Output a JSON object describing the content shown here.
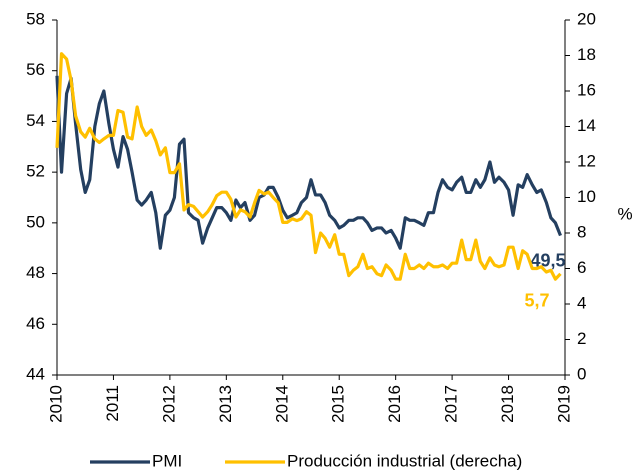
{
  "chart_data": {
    "type": "line",
    "y_axis_right_label": "%",
    "xlim": [
      2010,
      2019
    ],
    "xticks": [
      2010,
      2011,
      2012,
      2013,
      2014,
      2015,
      2016,
      2017,
      2018,
      2019
    ],
    "ylim": [
      44,
      58
    ],
    "yticks": [
      44,
      46,
      48,
      50,
      52,
      54,
      56,
      58
    ],
    "y2lim": [
      0,
      20
    ],
    "y2ticks": [
      0,
      2,
      4,
      6,
      8,
      10,
      12,
      14,
      16,
      18,
      20
    ],
    "grid": false,
    "legend": "bottom",
    "x": [
      2010.0,
      2010.08,
      2010.17,
      2010.25,
      2010.33,
      2010.42,
      2010.5,
      2010.58,
      2010.67,
      2010.75,
      2010.83,
      2010.92,
      2011.0,
      2011.08,
      2011.17,
      2011.25,
      2011.33,
      2011.42,
      2011.5,
      2011.58,
      2011.67,
      2011.75,
      2011.83,
      2011.92,
      2012.0,
      2012.08,
      2012.17,
      2012.25,
      2012.33,
      2012.42,
      2012.5,
      2012.58,
      2012.67,
      2012.75,
      2012.83,
      2012.92,
      2013.0,
      2013.08,
      2013.17,
      2013.25,
      2013.33,
      2013.42,
      2013.5,
      2013.58,
      2013.67,
      2013.75,
      2013.83,
      2013.92,
      2014.0,
      2014.08,
      2014.17,
      2014.25,
      2014.33,
      2014.42,
      2014.5,
      2014.58,
      2014.67,
      2014.75,
      2014.83,
      2014.92,
      2015.0,
      2015.08,
      2015.17,
      2015.25,
      2015.33,
      2015.42,
      2015.5,
      2015.58,
      2015.67,
      2015.75,
      2015.83,
      2015.92,
      2016.0,
      2016.08,
      2016.17,
      2016.25,
      2016.33,
      2016.42,
      2016.5,
      2016.58,
      2016.67,
      2016.75,
      2016.83,
      2016.92,
      2017.0,
      2017.08,
      2017.17,
      2017.25,
      2017.33,
      2017.42,
      2017.5,
      2017.58,
      2017.67,
      2017.75,
      2017.83,
      2017.92,
      2018.0,
      2018.08,
      2018.17,
      2018.25,
      2018.33,
      2018.42,
      2018.5,
      2018.58,
      2018.67,
      2018.75,
      2018.83,
      2018.92
    ],
    "series": [
      {
        "name": "PMI",
        "color": "#243f60",
        "axis": "y",
        "values": [
          55.8,
          52.0,
          55.1,
          55.7,
          53.9,
          52.1,
          51.2,
          51.7,
          53.8,
          54.7,
          55.2,
          53.9,
          52.9,
          52.2,
          53.4,
          52.9,
          52.0,
          50.9,
          50.7,
          50.9,
          51.2,
          50.4,
          49.0,
          50.3,
          50.5,
          51.0,
          53.1,
          53.3,
          50.4,
          50.2,
          50.1,
          49.2,
          49.8,
          50.2,
          50.6,
          50.6,
          50.4,
          50.1,
          50.9,
          50.6,
          50.8,
          50.1,
          50.3,
          51.0,
          51.1,
          51.4,
          51.4,
          51.0,
          50.5,
          50.2,
          50.3,
          50.4,
          50.8,
          51.0,
          51.7,
          51.1,
          51.1,
          50.8,
          50.3,
          50.1,
          49.8,
          49.9,
          50.1,
          50.1,
          50.2,
          50.2,
          50.0,
          49.7,
          49.8,
          49.8,
          49.6,
          49.7,
          49.4,
          49.0,
          50.2,
          50.1,
          50.1,
          50.0,
          49.9,
          50.4,
          50.4,
          51.2,
          51.7,
          51.4,
          51.3,
          51.6,
          51.8,
          51.2,
          51.2,
          51.7,
          51.4,
          51.7,
          52.4,
          51.6,
          51.8,
          51.6,
          51.3,
          50.3,
          51.5,
          51.4,
          51.9,
          51.5,
          51.2,
          51.3,
          50.8,
          50.2,
          50.0,
          49.5
        ],
        "value_labels": [
          null,
          null,
          null,
          null,
          null,
          null,
          null,
          null,
          null,
          null,
          null,
          null,
          null,
          null,
          null,
          null,
          null,
          null,
          null,
          null,
          null,
          null,
          null,
          null,
          null,
          null,
          null,
          null,
          null,
          null,
          null,
          null,
          null,
          null,
          null,
          null,
          null,
          null,
          null,
          null,
          null,
          null,
          null,
          null,
          null,
          null,
          null,
          null,
          null,
          null,
          null,
          null,
          null,
          null,
          null,
          null,
          null,
          null,
          null,
          null,
          null,
          null,
          null,
          null,
          null,
          null,
          null,
          null,
          null,
          null,
          null,
          null,
          null,
          null,
          null,
          null,
          null,
          null,
          null,
          null,
          null,
          null,
          null,
          null,
          null,
          null,
          null,
          null,
          null,
          null,
          null,
          null,
          null,
          null,
          null,
          null,
          null,
          null,
          null,
          null,
          null,
          null,
          null,
          null,
          null,
          null,
          null,
          "49,5"
        ]
      },
      {
        "name": "Producción industrial (derecha)",
        "color": "#ffc000",
        "axis": "y2",
        "values": [
          12.8,
          18.1,
          17.8,
          16.6,
          14.6,
          13.7,
          13.4,
          13.9,
          13.3,
          13.1,
          13.3,
          13.5,
          13.5,
          14.9,
          14.8,
          13.4,
          13.3,
          15.1,
          14.0,
          13.5,
          13.8,
          13.2,
          12.4,
          12.8,
          11.4,
          11.4,
          11.9,
          9.3,
          9.6,
          9.5,
          9.2,
          8.9,
          9.2,
          9.6,
          10.1,
          10.3,
          10.3,
          9.9,
          8.9,
          9.3,
          9.2,
          8.9,
          9.7,
          10.4,
          10.2,
          10.3,
          10.0,
          9.7,
          8.6,
          8.6,
          8.8,
          8.7,
          8.8,
          9.2,
          9.0,
          6.9,
          8.0,
          7.7,
          7.2,
          7.9,
          6.8,
          6.8,
          5.6,
          5.9,
          6.1,
          6.8,
          6.0,
          6.1,
          5.7,
          5.6,
          6.2,
          5.9,
          5.4,
          5.4,
          6.8,
          6.0,
          6.0,
          6.2,
          6.0,
          6.3,
          6.1,
          6.1,
          6.2,
          6.0,
          6.3,
          6.3,
          7.6,
          6.5,
          6.5,
          7.6,
          6.4,
          6.0,
          6.6,
          6.2,
          6.1,
          6.2,
          7.2,
          7.2,
          6.0,
          7.0,
          6.8,
          6.0,
          6.0,
          6.1,
          5.8,
          5.9,
          5.4,
          5.7
        ],
        "value_labels": [
          null,
          null,
          null,
          null,
          null,
          null,
          null,
          null,
          null,
          null,
          null,
          null,
          null,
          null,
          null,
          null,
          null,
          null,
          null,
          null,
          null,
          null,
          null,
          null,
          null,
          null,
          null,
          null,
          null,
          null,
          null,
          null,
          null,
          null,
          null,
          null,
          null,
          null,
          null,
          null,
          null,
          null,
          null,
          null,
          null,
          null,
          null,
          null,
          null,
          null,
          null,
          null,
          null,
          null,
          null,
          null,
          null,
          null,
          null,
          null,
          null,
          null,
          null,
          null,
          null,
          null,
          null,
          null,
          null,
          null,
          null,
          null,
          null,
          null,
          null,
          null,
          null,
          null,
          null,
          null,
          null,
          null,
          null,
          null,
          null,
          null,
          null,
          null,
          null,
          null,
          null,
          null,
          null,
          null,
          null,
          null,
          null,
          null,
          null,
          null,
          null,
          null,
          null,
          null,
          null,
          null,
          null,
          "5,7"
        ]
      }
    ]
  }
}
